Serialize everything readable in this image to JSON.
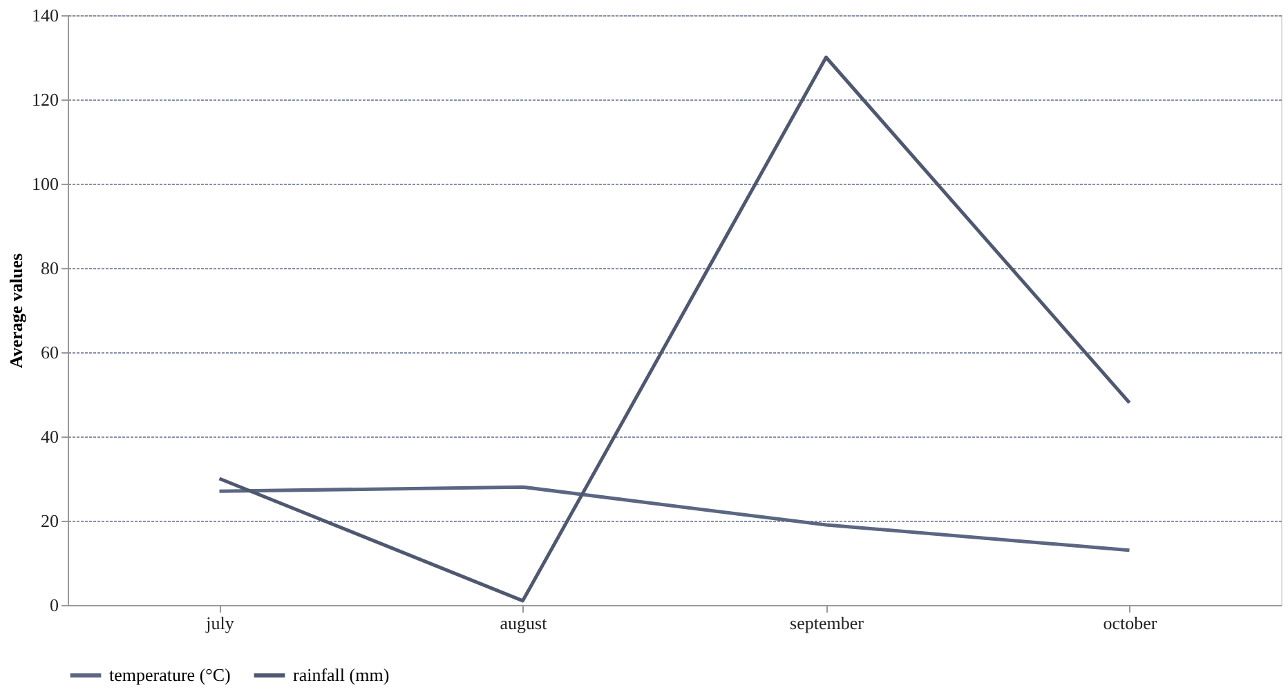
{
  "chart_data": {
    "type": "line",
    "ylabel": "Average values",
    "categories": [
      "july",
      "august",
      "september",
      "october"
    ],
    "series": [
      {
        "name": "temperature (°C)",
        "color": "#5b6782",
        "values": [
          27,
          28,
          19,
          13
        ]
      },
      {
        "name": "rainfall (mm)",
        "color": "#4f5870",
        "values": [
          30,
          1,
          130,
          48
        ]
      }
    ],
    "ylim": [
      0,
      140
    ],
    "yticks": [
      0,
      20,
      40,
      60,
      80,
      100,
      120,
      140
    ],
    "grid": "y",
    "legend": "bottom",
    "marker": "none",
    "line_style": "solid"
  }
}
